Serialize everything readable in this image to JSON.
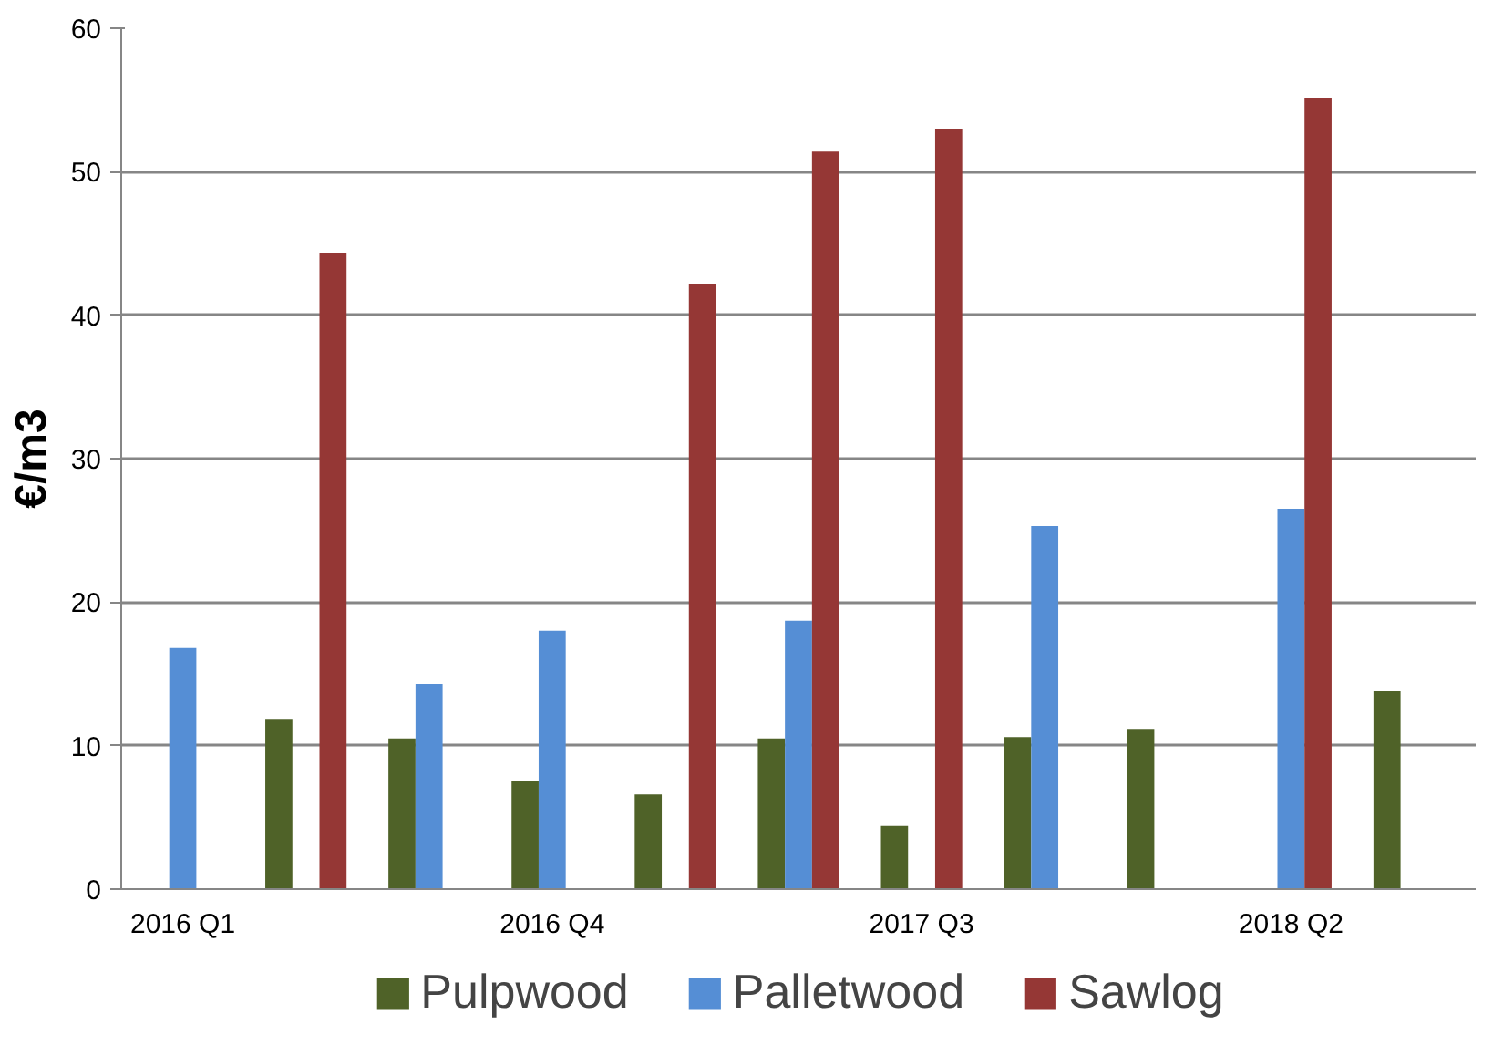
{
  "chart_data": {
    "type": "bar",
    "ylabel": "€/m3",
    "categories": [
      "2016 Q1",
      null,
      null,
      "2016 Q4",
      null,
      null,
      "2017 Q3",
      null,
      null,
      "2018 Q2",
      null
    ],
    "series": [
      {
        "name": "Pulpwood",
        "color": "#4f6228",
        "values": [
          null,
          11.8,
          10.5,
          7.5,
          6.6,
          10.5,
          4.4,
          10.6,
          11.1,
          null,
          13.8
        ]
      },
      {
        "name": "Palletwood",
        "color": "#558ed5",
        "values": [
          16.8,
          null,
          14.3,
          18.0,
          null,
          18.7,
          null,
          25.3,
          null,
          26.5,
          null
        ]
      },
      {
        "name": "Sawlog",
        "color": "#953735",
        "values": [
          null,
          44.3,
          null,
          null,
          42.2,
          51.4,
          53.0,
          null,
          null,
          55.1,
          null
        ]
      }
    ],
    "ylim": [
      0,
      60
    ],
    "yticks": [
      0,
      10,
      20,
      30,
      40,
      50,
      60
    ],
    "grid": "y",
    "legend": "bottom"
  }
}
